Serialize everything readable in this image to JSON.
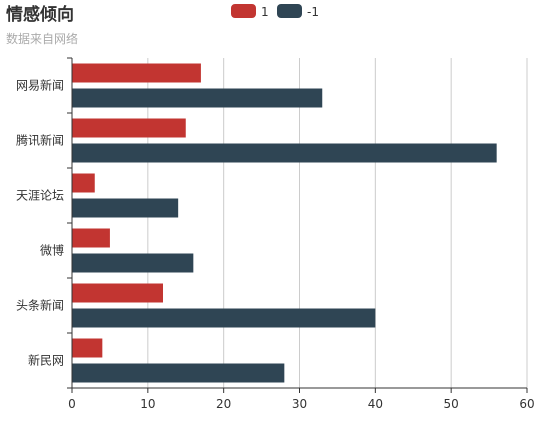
{
  "chart_data": {
    "type": "bar",
    "orientation": "horizontal",
    "title": "情感倾向",
    "subtitle": "数据来自网络",
    "categories": [
      "网易新闻",
      "腾讯新闻",
      "天涯论坛",
      "微博",
      "头条新闻",
      "新民网"
    ],
    "series": [
      {
        "name": "1",
        "color": "#c23531",
        "values": [
          17,
          15,
          3,
          5,
          12,
          4
        ]
      },
      {
        "name": "-1",
        "color": "#2f4554",
        "values": [
          33,
          56,
          14,
          16,
          40,
          28
        ]
      }
    ],
    "x_ticks": [
      "0",
      "10",
      "20",
      "30",
      "40",
      "50",
      "60"
    ],
    "xlim": [
      0,
      60
    ],
    "grid": "vertical",
    "legend_position": "top-center"
  }
}
